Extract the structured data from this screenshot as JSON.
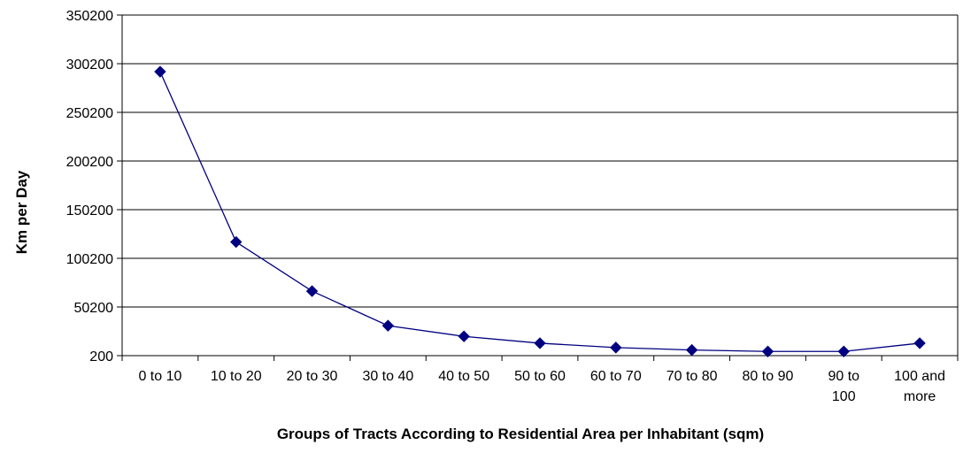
{
  "chart_data": {
    "type": "line",
    "title": "",
    "xlabel": "Groups of Tracts According to Residential Area per Inhabitant (sqm)",
    "ylabel": "Km per Day",
    "categories": [
      "0 to 10",
      "10 to 20",
      "20 to 30",
      "30 to 40",
      "40 to 50",
      "50 to 60",
      "60 to 70",
      "70 to 80",
      "80 to 90",
      "90 to 100",
      "100 and more"
    ],
    "category_lines": [
      [
        "0 to 10"
      ],
      [
        "10 to 20"
      ],
      [
        "20 to 30"
      ],
      [
        "30 to 40"
      ],
      [
        "40 to 50"
      ],
      [
        "50 to 60"
      ],
      [
        "60 to 70"
      ],
      [
        "70 to 80"
      ],
      [
        "80 to 90"
      ],
      [
        "90 to",
        "100"
      ],
      [
        "100 and",
        "more"
      ]
    ],
    "series": [
      {
        "values": [
          292000,
          117000,
          66500,
          31000,
          20000,
          13000,
          8500,
          6000,
          4500,
          4500,
          13000
        ],
        "color": "#000080"
      }
    ],
    "ylim": [
      200,
      350200
    ],
    "yticks": [
      200,
      50200,
      100200,
      150200,
      200200,
      250200,
      300200,
      350200
    ],
    "grid": true,
    "legend": "none",
    "marker": "diamond"
  }
}
